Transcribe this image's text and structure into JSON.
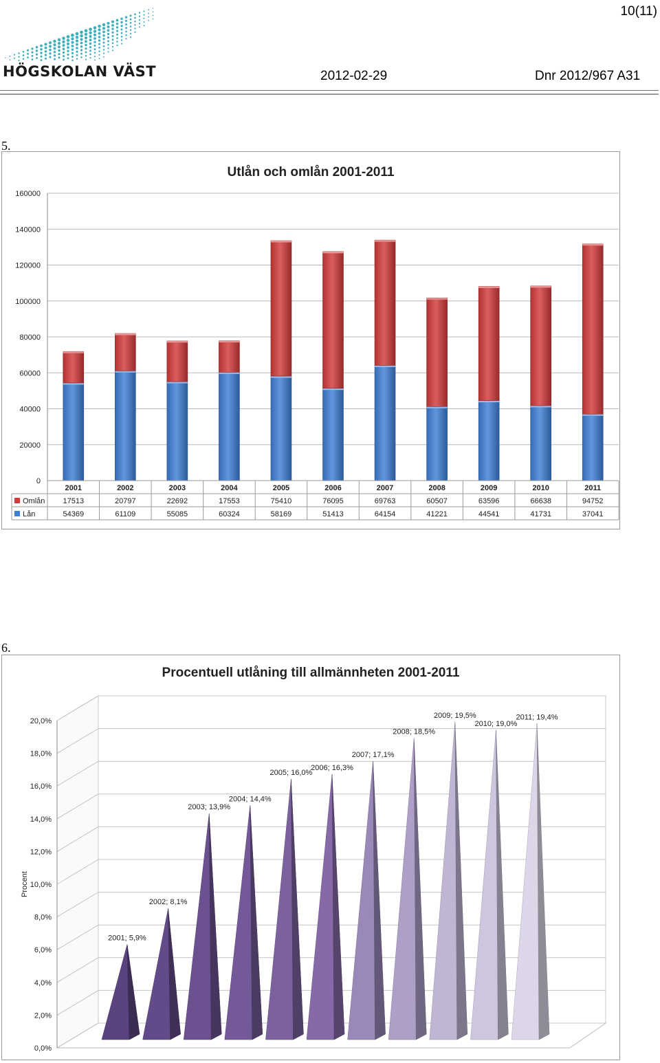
{
  "header": {
    "logo_text": "HÖGSKOLAN VÄST",
    "page_number": "10(11)",
    "date": "2012-02-29",
    "dnr": "Dnr 2012/967 A31"
  },
  "sections": {
    "label_5": "5.",
    "label_6": "6."
  },
  "colors": {
    "lan": "#3f7fd6",
    "omlan": "#d33b3b",
    "logo_dots": "#1aa1b0",
    "cone_dark": "#5b4380",
    "cone_light": "#dcd6e8"
  },
  "chart_data": [
    {
      "type": "bar",
      "stacked": true,
      "title": "Utlån och omlån 2001-2011",
      "categories": [
        "2001",
        "2002",
        "2003",
        "2004",
        "2005",
        "2006",
        "2007",
        "2008",
        "2009",
        "2010",
        "2011"
      ],
      "series": [
        {
          "name": "Lån",
          "color": "#3f7fd6",
          "values": [
            54369,
            61109,
            55085,
            60324,
            58169,
            51413,
            64154,
            41221,
            44541,
            41731,
            37041
          ]
        },
        {
          "name": "Omlån",
          "color": "#d33b3b",
          "values": [
            17513,
            20797,
            22692,
            17553,
            75410,
            76095,
            69763,
            60507,
            63596,
            66638,
            94752
          ]
        }
      ],
      "ylim": [
        0,
        160000
      ],
      "yticks": [
        "0",
        "20000",
        "40000",
        "60000",
        "80000",
        "100000",
        "120000",
        "140000",
        "160000"
      ],
      "legend": "data-table",
      "grid": true
    },
    {
      "type": "bar",
      "shape": "3d-cone",
      "title": "Procentuell utlåning till allmännheten 2001-2011",
      "ylabel": "Procent",
      "categories": [
        "2001",
        "2002",
        "2003",
        "2004",
        "2005",
        "2006",
        "2007",
        "2008",
        "2009",
        "2010",
        "2011"
      ],
      "values": [
        5.9,
        8.1,
        13.9,
        14.4,
        16.0,
        16.3,
        17.1,
        18.5,
        19.5,
        19.0,
        19.4
      ],
      "data_labels": [
        "2001; 5,9%",
        "2002; 8,1%",
        "2003; 13,9%",
        "2004; 14,4%",
        "2005; 16,0%",
        "2006; 16,3%",
        "2007; 17,1%",
        "2008; 18,5%",
        "2009; 19,5%",
        "2010; 19,0%",
        "2011; 19,4%"
      ],
      "ylim": [
        0,
        20
      ],
      "yticks": [
        "0,0%",
        "2,0%",
        "4,0%",
        "6,0%",
        "8,0%",
        "10,0%",
        "12,0%",
        "14,0%",
        "16,0%",
        "18,0%",
        "20,0%"
      ],
      "colors": [
        "#5b4380",
        "#634a88",
        "#6b5190",
        "#735997",
        "#7b619e",
        "#8669a7",
        "#9a88b8",
        "#ad9fc8",
        "#c0b6d4",
        "#cec6de",
        "#dcd6e8"
      ],
      "grid": true
    }
  ]
}
